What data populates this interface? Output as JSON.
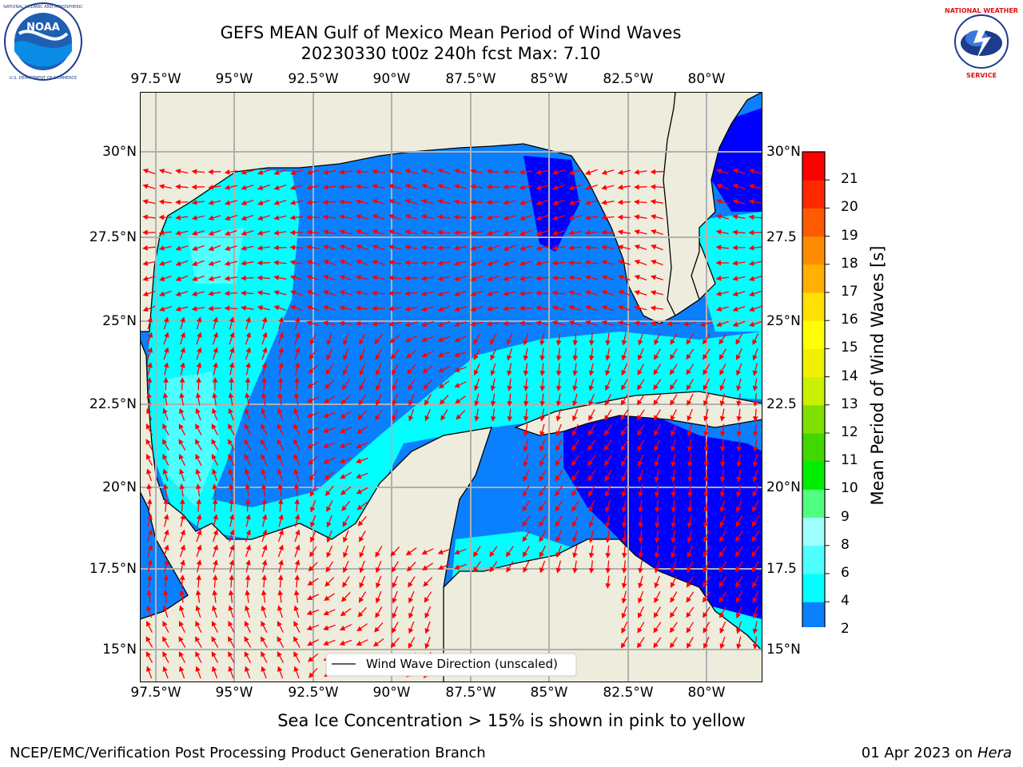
{
  "title": {
    "line1": "GEFS MEAN Gulf of Mexico Mean Period of Wind Waves",
    "line2": "20230330 t00z 240h fcst   Max: 7.10"
  },
  "logos": {
    "left": {
      "name": "NOAA",
      "ring_text": "NATIONAL OCEANIC AND ATMOSPHERIC ADMINISTRATION · U.S. DEPARTMENT OF COMMERCE"
    },
    "right": {
      "name": "NATIONAL WEATHER SERVICE"
    }
  },
  "map": {
    "lon_labels": [
      "97.5°W",
      "95°W",
      "92.5°W",
      "90°W",
      "87.5°W",
      "85°W",
      "82.5°W",
      "80°W"
    ],
    "lat_labels": [
      "30°N",
      "27.5°N",
      "25°N",
      "22.5°N",
      "20°N",
      "17.5°N",
      "15°N"
    ],
    "right_lat_labels": [
      "30°N",
      "27.5",
      "25°N",
      "22.5",
      "20°N",
      "17.5",
      "15°N"
    ],
    "legend_label": "Wind Wave Direction (unscaled)",
    "arrow_color": "#ff0000",
    "land_color": "#eeecdc",
    "grid_color": "#b0b0b0"
  },
  "colorbar": {
    "label": "Mean Period of Wind Waves [s]",
    "ticks": [
      "2",
      "4",
      "6",
      "8",
      "9",
      "10",
      "11",
      "12",
      "13",
      "14",
      "15",
      "16",
      "17",
      "18",
      "19",
      "20",
      "21"
    ],
    "bins": [
      "#0a80ff",
      "#00ffff",
      "#4dffff",
      "#a0ffff",
      "#50ff80",
      "#00ee00",
      "#40d800",
      "#80e000",
      "#c8f000",
      "#f0f000",
      "#ffff00",
      "#ffe000",
      "#ffb000",
      "#ff8c00",
      "#ff5a00",
      "#ff2800",
      "#ff0000"
    ],
    "under_color": "#0000ff"
  },
  "note": "Sea Ice Concentration > 15% is shown in pink to yellow",
  "footer": {
    "left": "NCEP/EMC/Verification Post Processing Product Generation Branch",
    "date": "01 Apr 2023 on ",
    "machine": "Hera"
  }
}
